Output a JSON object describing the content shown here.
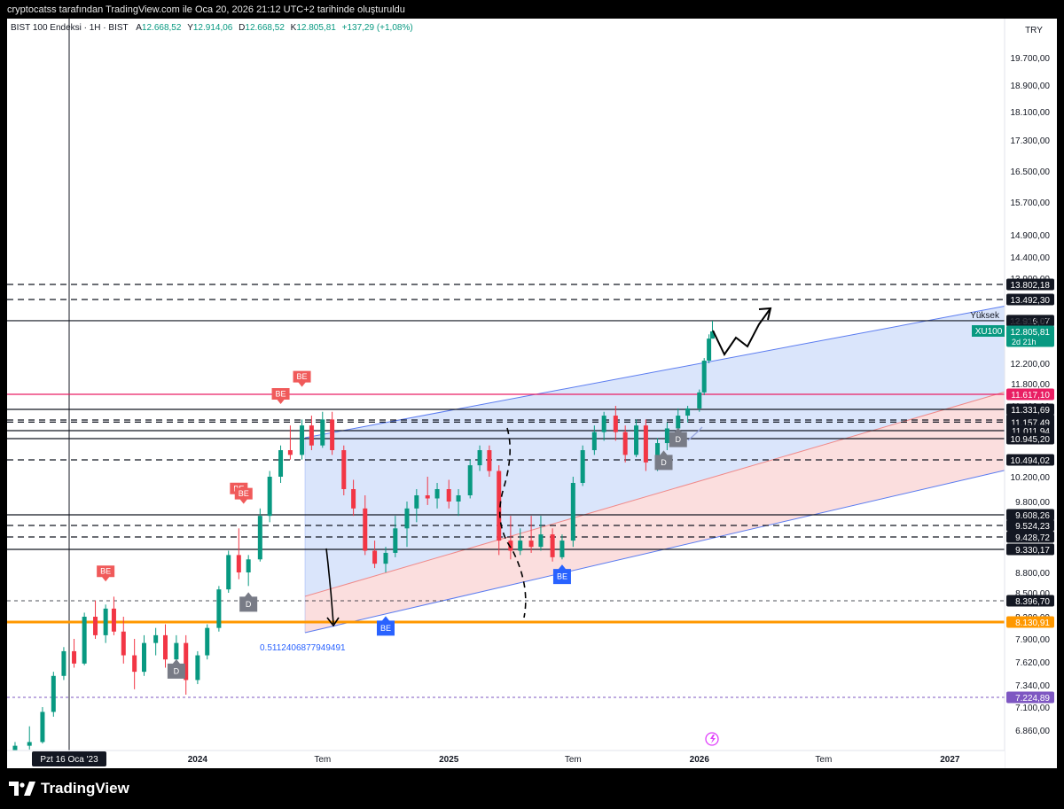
{
  "header": {
    "caption": "cryptocatss tarafından TradingView.com ile Oca 20, 2026 21:12 UTC+2 tarihinde oluşturuldu",
    "currency": "TRY"
  },
  "legend": {
    "symbol": "BIST 100 Endeksi · 1H · BIST",
    "open_label": "A",
    "open": "12.668,52",
    "high_label": "Y",
    "high": "12.914,06",
    "low_label": "D",
    "low": "12.668,52",
    "close_label": "K",
    "close": "12.805,81",
    "change": "+137,29 (+1,08%)"
  },
  "footer": {
    "brand": "TradingView"
  },
  "colors": {
    "up": "#089981",
    "down": "#f23645",
    "channel_fill": "#d6e2fb",
    "channel_line": "#5b7cf0",
    "red_zone_fill": "#fbdada",
    "red_zone_line": "#f08a8a",
    "orange": "#ff9800",
    "magenta": "#e91e63",
    "purple": "#7e57c2",
    "signal_red": "#f05a5a",
    "signal_blue": "#2962ff",
    "signal_gray": "#787b86"
  },
  "chart_data": {
    "type": "candlestick",
    "symbol": "XU100",
    "y_axis": {
      "ticks": [
        "19.700,00",
        "18.900,00",
        "18.100,00",
        "17.300,00",
        "16.500,00",
        "15.700,00",
        "14.900,00",
        "14.400,00",
        "13.900,00",
        "12.200,00",
        "11.800,00",
        "11.400,00",
        "10.200,00",
        "9.800,00",
        "8.800,00",
        "8.500,00",
        "8.200,00",
        "7.900,00",
        "7.620,00",
        "7.340,00",
        "7.100,00",
        "6.860,00"
      ],
      "tick_values": [
        19700,
        18900,
        18100,
        17300,
        16500,
        15700,
        14900,
        14400,
        13900,
        12200,
        11800,
        11400,
        10200,
        9800,
        8800,
        8500,
        8200,
        7900,
        7620,
        7340,
        7100,
        6860
      ]
    },
    "x_axis": {
      "labels": [
        "Tem",
        "2024",
        "Tem",
        "2025",
        "Tem",
        "2026",
        "Tem",
        "2027"
      ],
      "bold": [
        false,
        true,
        false,
        true,
        false,
        true,
        false,
        true
      ],
      "dates": [
        "2023-07-01",
        "2024-01-01",
        "2024-07-01",
        "2025-01-01",
        "2025-07-01",
        "2026-01-01",
        "2026-07-01",
        "2027-01-01"
      ],
      "range": [
        "2023-03-01",
        "2027-04-01"
      ],
      "crosshair_date": "2023-01-16",
      "crosshair_label": "Pzt 16 Oca '23"
    },
    "price_tags": [
      {
        "label": "13.802,18",
        "value": 13802.18,
        "style": "black"
      },
      {
        "label": "13.492,30",
        "value": 13492.3,
        "style": "black"
      },
      {
        "label": "12.916,07",
        "value": 12916.07,
        "style": "black"
      },
      {
        "label": "12.914,06",
        "value": 12914.06,
        "style": "plain"
      },
      {
        "label": "12.805,81",
        "value": 12805.81,
        "style": "green",
        "sub": "2d 21h"
      },
      {
        "label": "11.617,10",
        "value": 11617.1,
        "style": "magenta"
      },
      {
        "label": "11.331,69",
        "value": 11331.69,
        "style": "black"
      },
      {
        "label": "11.193,04",
        "value": 11193.04,
        "style": "black"
      },
      {
        "label": "11.157,49",
        "value": 11157.49,
        "style": "black"
      },
      {
        "label": "11.011,94",
        "value": 11011.94,
        "style": "black"
      },
      {
        "label": "10.945,20",
        "value": 10945.2,
        "style": "black"
      },
      {
        "label": "10.494,02",
        "value": 10494.02,
        "style": "black"
      },
      {
        "label": "9.608,26",
        "value": 9608.26,
        "style": "black"
      },
      {
        "label": "9.524,23",
        "value": 9524.23,
        "style": "black"
      },
      {
        "label": "9.428,72",
        "value": 9428.72,
        "style": "black"
      },
      {
        "label": "9.330,17",
        "value": 9330.17,
        "style": "black"
      },
      {
        "label": "8.396,70",
        "value": 8396.7,
        "style": "black"
      },
      {
        "label": "8.130,91",
        "value": 8130.91,
        "style": "orange"
      },
      {
        "label": "7.224,89",
        "value": 7224.89,
        "style": "purple"
      }
    ],
    "yuksek_label": "Yüksek",
    "symbol_tag": "XU100",
    "horizontal_lines": [
      {
        "value": 13802.18,
        "style": "dashed"
      },
      {
        "value": 13492.3,
        "style": "dashed"
      },
      {
        "value": 12916.07,
        "style": "solid"
      },
      {
        "value": 11617.1,
        "style": "magenta"
      },
      {
        "value": 11331.69,
        "style": "solid"
      },
      {
        "value": 11193.04,
        "style": "dashed"
      },
      {
        "value": 11157.49,
        "style": "dashed"
      },
      {
        "value": 11011.94,
        "style": "solid"
      },
      {
        "value": 10945.2,
        "style": "solid"
      },
      {
        "value": 10494.02,
        "style": "dashed"
      },
      {
        "value": 9608.26,
        "style": "solid"
      },
      {
        "value": 9524.23,
        "style": "dashed"
      },
      {
        "value": 9428.72,
        "style": "dashed"
      },
      {
        "value": 9330.17,
        "style": "solid"
      },
      {
        "value": 8396.7,
        "style": "dashed-thin"
      },
      {
        "value": 8130.91,
        "style": "orange"
      },
      {
        "value": 7224.89,
        "style": "purple-dotted"
      }
    ],
    "annotation_number": "0.5112406877949491",
    "signals": [
      {
        "label": "BE",
        "kind": "sell",
        "date": "2023-08-20",
        "value": 8680
      },
      {
        "label": "BE",
        "kind": "sell",
        "date": "2024-03-01",
        "value": 9860
      },
      {
        "label": "BE",
        "kind": "sell",
        "date": "2024-03-08",
        "value": 9780
      },
      {
        "label": "BE",
        "kind": "sell",
        "date": "2024-05-01",
        "value": 11450
      },
      {
        "label": "BE",
        "kind": "sell",
        "date": "2024-06-01",
        "value": 11760
      },
      {
        "label": "BE",
        "kind": "buy",
        "date": "2024-10-01",
        "value": 8150
      },
      {
        "label": "BE",
        "kind": "buy",
        "date": "2025-06-15",
        "value": 8880
      },
      {
        "label": "D",
        "kind": "gray",
        "date": "2023-12-01",
        "value": 7600
      },
      {
        "label": "D",
        "kind": "gray",
        "date": "2024-03-15",
        "value": 8450
      },
      {
        "label": "D",
        "kind": "gray",
        "date": "2025-11-10",
        "value": 10600
      },
      {
        "label": "D",
        "kind": "gray",
        "date": "2025-12-01",
        "value": 11000
      }
    ],
    "candles": [
      {
        "d": "2023-03-20",
        "o": 6320,
        "h": 6500,
        "l": 6300,
        "c": 6450
      },
      {
        "d": "2023-04-10",
        "o": 6450,
        "h": 6700,
        "l": 6420,
        "c": 6650
      },
      {
        "d": "2023-05-01",
        "o": 6650,
        "h": 6900,
        "l": 6600,
        "c": 6700
      },
      {
        "d": "2023-05-20",
        "o": 6700,
        "h": 7100,
        "l": 6680,
        "c": 7050
      },
      {
        "d": "2023-06-05",
        "o": 7050,
        "h": 7500,
        "l": 7000,
        "c": 7450
      },
      {
        "d": "2023-06-20",
        "o": 7450,
        "h": 7800,
        "l": 7400,
        "c": 7750
      },
      {
        "d": "2023-07-05",
        "o": 7750,
        "h": 7900,
        "l": 7550,
        "c": 7600
      },
      {
        "d": "2023-07-20",
        "o": 7600,
        "h": 8250,
        "l": 7580,
        "c": 8200
      },
      {
        "d": "2023-08-05",
        "o": 8200,
        "h": 8400,
        "l": 7900,
        "c": 7950
      },
      {
        "d": "2023-08-20",
        "o": 7950,
        "h": 8350,
        "l": 7850,
        "c": 8300
      },
      {
        "d": "2023-09-01",
        "o": 8300,
        "h": 8450,
        "l": 7950,
        "c": 8000
      },
      {
        "d": "2023-09-15",
        "o": 8000,
        "h": 8200,
        "l": 7600,
        "c": 7700
      },
      {
        "d": "2023-10-01",
        "o": 7700,
        "h": 7900,
        "l": 7300,
        "c": 7500
      },
      {
        "d": "2023-10-15",
        "o": 7500,
        "h": 7950,
        "l": 7450,
        "c": 7850
      },
      {
        "d": "2023-11-01",
        "o": 7850,
        "h": 8050,
        "l": 7700,
        "c": 7950
      },
      {
        "d": "2023-11-15",
        "o": 7950,
        "h": 8100,
        "l": 7550,
        "c": 7650
      },
      {
        "d": "2023-12-01",
        "o": 7650,
        "h": 7950,
        "l": 7500,
        "c": 7850
      },
      {
        "d": "2023-12-15",
        "o": 7850,
        "h": 7950,
        "l": 7250,
        "c": 7400
      },
      {
        "d": "2024-01-01",
        "o": 7400,
        "h": 7750,
        "l": 7350,
        "c": 7700
      },
      {
        "d": "2024-01-15",
        "o": 7700,
        "h": 8100,
        "l": 7650,
        "c": 8050
      },
      {
        "d": "2024-02-01",
        "o": 8050,
        "h": 8600,
        "l": 8000,
        "c": 8550
      },
      {
        "d": "2024-02-15",
        "o": 8550,
        "h": 9300,
        "l": 8500,
        "c": 9200
      },
      {
        "d": "2024-03-01",
        "o": 9200,
        "h": 9500,
        "l": 8700,
        "c": 8800
      },
      {
        "d": "2024-03-15",
        "o": 8800,
        "h": 9200,
        "l": 8600,
        "c": 9100
      },
      {
        "d": "2024-04-01",
        "o": 9100,
        "h": 9700,
        "l": 9050,
        "c": 9600
      },
      {
        "d": "2024-04-15",
        "o": 9600,
        "h": 10300,
        "l": 9550,
        "c": 10200
      },
      {
        "d": "2024-05-01",
        "o": 10200,
        "h": 10800,
        "l": 10100,
        "c": 10700
      },
      {
        "d": "2024-05-15",
        "o": 10700,
        "h": 11100,
        "l": 10500,
        "c": 10600
      },
      {
        "d": "2024-06-01",
        "o": 10600,
        "h": 11200,
        "l": 10500,
        "c": 11100
      },
      {
        "d": "2024-06-15",
        "o": 11100,
        "h": 11250,
        "l": 10700,
        "c": 10800
      },
      {
        "d": "2024-07-01",
        "o": 10800,
        "h": 11300,
        "l": 10750,
        "c": 11200
      },
      {
        "d": "2024-07-15",
        "o": 11200,
        "h": 11300,
        "l": 10600,
        "c": 10700
      },
      {
        "d": "2024-08-01",
        "o": 10700,
        "h": 10800,
        "l": 9900,
        "c": 10000
      },
      {
        "d": "2024-08-15",
        "o": 10000,
        "h": 10150,
        "l": 9600,
        "c": 9700
      },
      {
        "d": "2024-09-01",
        "o": 9700,
        "h": 9900,
        "l": 9200,
        "c": 9300
      },
      {
        "d": "2024-09-15",
        "o": 9300,
        "h": 9400,
        "l": 8900,
        "c": 9000
      },
      {
        "d": "2024-10-01",
        "o": 9000,
        "h": 9350,
        "l": 8800,
        "c": 9250
      },
      {
        "d": "2024-10-15",
        "o": 9250,
        "h": 9600,
        "l": 9150,
        "c": 9500
      },
      {
        "d": "2024-11-01",
        "o": 9500,
        "h": 9800,
        "l": 9350,
        "c": 9700
      },
      {
        "d": "2024-11-15",
        "o": 9700,
        "h": 10000,
        "l": 9550,
        "c": 9900
      },
      {
        "d": "2024-12-01",
        "o": 9900,
        "h": 10200,
        "l": 9750,
        "c": 9850
      },
      {
        "d": "2024-12-15",
        "o": 9850,
        "h": 10100,
        "l": 9700,
        "c": 10000
      },
      {
        "d": "2025-01-01",
        "o": 10000,
        "h": 10150,
        "l": 9700,
        "c": 9800
      },
      {
        "d": "2025-01-15",
        "o": 9800,
        "h": 10000,
        "l": 9600,
        "c": 9900
      },
      {
        "d": "2025-02-01",
        "o": 9900,
        "h": 10500,
        "l": 9850,
        "c": 10400
      },
      {
        "d": "2025-02-15",
        "o": 10400,
        "h": 10800,
        "l": 10300,
        "c": 10700
      },
      {
        "d": "2025-03-01",
        "o": 10700,
        "h": 10800,
        "l": 10200,
        "c": 10300
      },
      {
        "d": "2025-03-15",
        "o": 10300,
        "h": 10400,
        "l": 9200,
        "c": 9400
      },
      {
        "d": "2025-04-01",
        "o": 9400,
        "h": 9600,
        "l": 9100,
        "c": 9300
      },
      {
        "d": "2025-04-15",
        "o": 9300,
        "h": 9500,
        "l": 9200,
        "c": 9400
      },
      {
        "d": "2025-05-01",
        "o": 9400,
        "h": 9600,
        "l": 9250,
        "c": 9350
      },
      {
        "d": "2025-05-15",
        "o": 9350,
        "h": 9600,
        "l": 9300,
        "c": 9450
      },
      {
        "d": "2025-06-01",
        "o": 9450,
        "h": 9500,
        "l": 9050,
        "c": 9150
      },
      {
        "d": "2025-06-15",
        "o": 9150,
        "h": 9450,
        "l": 9100,
        "c": 9400
      },
      {
        "d": "2025-07-01",
        "o": 9400,
        "h": 10200,
        "l": 9350,
        "c": 10100
      },
      {
        "d": "2025-07-15",
        "o": 10100,
        "h": 10800,
        "l": 10050,
        "c": 10700
      },
      {
        "d": "2025-08-01",
        "o": 10700,
        "h": 11100,
        "l": 10600,
        "c": 11000
      },
      {
        "d": "2025-08-15",
        "o": 11000,
        "h": 11300,
        "l": 10900,
        "c": 11250
      },
      {
        "d": "2025-09-01",
        "o": 11250,
        "h": 11400,
        "l": 10900,
        "c": 11000
      },
      {
        "d": "2025-09-15",
        "o": 11000,
        "h": 11100,
        "l": 10450,
        "c": 10600
      },
      {
        "d": "2025-10-01",
        "o": 10600,
        "h": 11200,
        "l": 10550,
        "c": 11100
      },
      {
        "d": "2025-10-15",
        "o": 11100,
        "h": 11200,
        "l": 10300,
        "c": 10450
      },
      {
        "d": "2025-11-01",
        "o": 10450,
        "h": 10950,
        "l": 10300,
        "c": 10850
      },
      {
        "d": "2025-11-15",
        "o": 10850,
        "h": 11150,
        "l": 10700,
        "c": 11050
      },
      {
        "d": "2025-12-01",
        "o": 11050,
        "h": 11350,
        "l": 10900,
        "c": 11250
      },
      {
        "d": "2025-12-15",
        "o": 11250,
        "h": 11400,
        "l": 11150,
        "c": 11350
      },
      {
        "d": "2026-01-01",
        "o": 11350,
        "h": 11700,
        "l": 11300,
        "c": 11650
      },
      {
        "d": "2026-01-08",
        "o": 11650,
        "h": 12300,
        "l": 11600,
        "c": 12250
      },
      {
        "d": "2026-01-15",
        "o": 12250,
        "h": 12750,
        "l": 12200,
        "c": 12668.52
      },
      {
        "d": "2026-01-20",
        "o": 12668.52,
        "h": 12914.06,
        "l": 12668.52,
        "c": 12805.81
      }
    ]
  }
}
